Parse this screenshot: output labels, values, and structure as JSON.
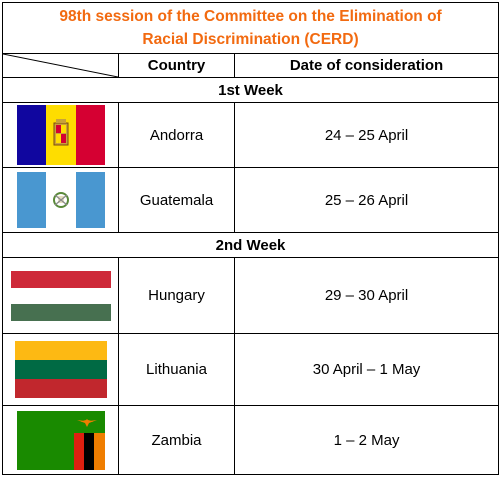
{
  "title": {
    "line1": "98th session  of the Committee on the Elimination of",
    "line2": "Racial Discrimination (CERD)"
  },
  "headers": {
    "country": "Country",
    "date": "Date of consideration"
  },
  "weeks": [
    {
      "label": "1st Week",
      "rows": [
        {
          "country": "Andorra",
          "date": "24 – 25 April",
          "flag": "andorra-flag"
        },
        {
          "country": "Guatemala",
          "date": "25 – 26 April",
          "flag": "guatemala-flag"
        }
      ]
    },
    {
      "label": "2nd Week",
      "rows": [
        {
          "country": "Hungary",
          "date": "29 – 30 April",
          "flag": "hungary-flag"
        },
        {
          "country": "Lithuania",
          "date": "30 April – 1 May",
          "flag": "lithuania-flag"
        },
        {
          "country": "Zambia",
          "date": "1 – 2 May",
          "flag": "zambia-flag"
        }
      ]
    }
  ],
  "colors": {
    "title": "#f26a10",
    "andorra_blue": "#10069f",
    "andorra_yellow": "#fedd00",
    "andorra_red": "#d50032",
    "guatemala_blue": "#4997d0",
    "hungary_red": "#ce2939",
    "hungary_green": "#477050",
    "lithuania_yellow": "#fdb913",
    "lithuania_green": "#006a44",
    "lithuania_red": "#c1272d",
    "zambia_green": "#198a00",
    "zambia_red": "#de2010",
    "zambia_black": "#000000",
    "zambia_orange": "#ef7d00"
  }
}
